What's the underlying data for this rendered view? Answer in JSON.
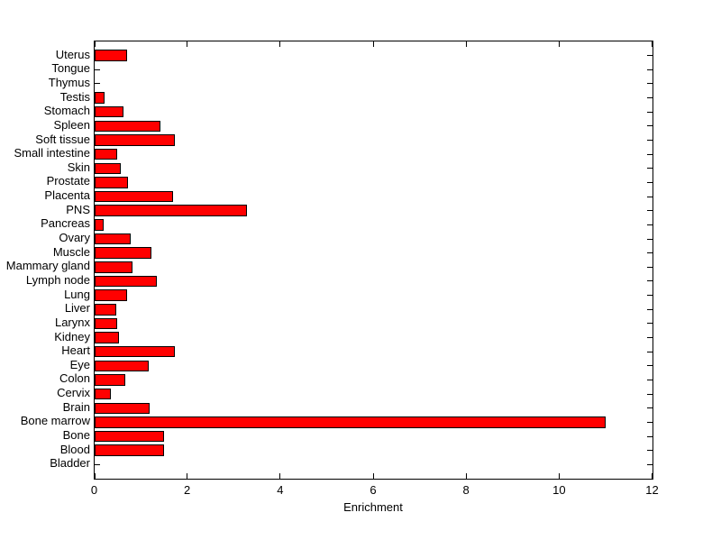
{
  "figure": {
    "background_color": "#FFFFFF",
    "axis_color": "#000000",
    "text_color": "#000000"
  },
  "chart_data": {
    "type": "bar",
    "orientation": "horizontal",
    "title": "",
    "xlabel": "Enrichment",
    "ylabel": "",
    "xlim": [
      0,
      12
    ],
    "xticks": [
      0,
      2,
      4,
      6,
      8,
      10,
      12
    ],
    "xtick_labels": [
      "0",
      "2",
      "4",
      "6",
      "8",
      "10",
      "12"
    ],
    "grid": false,
    "legend": null,
    "bar_color": "#FF0000",
    "bar_edge_color": "#000000",
    "categories_order": "top-to-bottom",
    "categories": [
      "Uterus",
      "Tongue",
      "Thymus",
      "Testis",
      "Stomach",
      "Spleen",
      "Soft tissue",
      "Small intestine",
      "Skin",
      "Prostate",
      "Placenta",
      "PNS",
      "Pancreas",
      "Ovary",
      "Muscle",
      "Mammary gland",
      "Lymph node",
      "Lung",
      "Liver",
      "Larynx",
      "Kidney",
      "Heart",
      "Eye",
      "Colon",
      "Cervix",
      "Brain",
      "Bone marrow",
      "Bone",
      "Blood",
      "Bladder"
    ],
    "values": [
      0.7,
      0,
      0,
      0.22,
      0.62,
      1.42,
      1.73,
      0.49,
      0.56,
      0.71,
      1.69,
      3.27,
      0.2,
      0.78,
      1.23,
      0.82,
      1.33,
      0.69,
      0.47,
      0.49,
      0.53,
      1.73,
      1.17,
      0.65,
      0.34,
      1.19,
      11.0,
      1.5,
      1.5,
      0
    ]
  }
}
